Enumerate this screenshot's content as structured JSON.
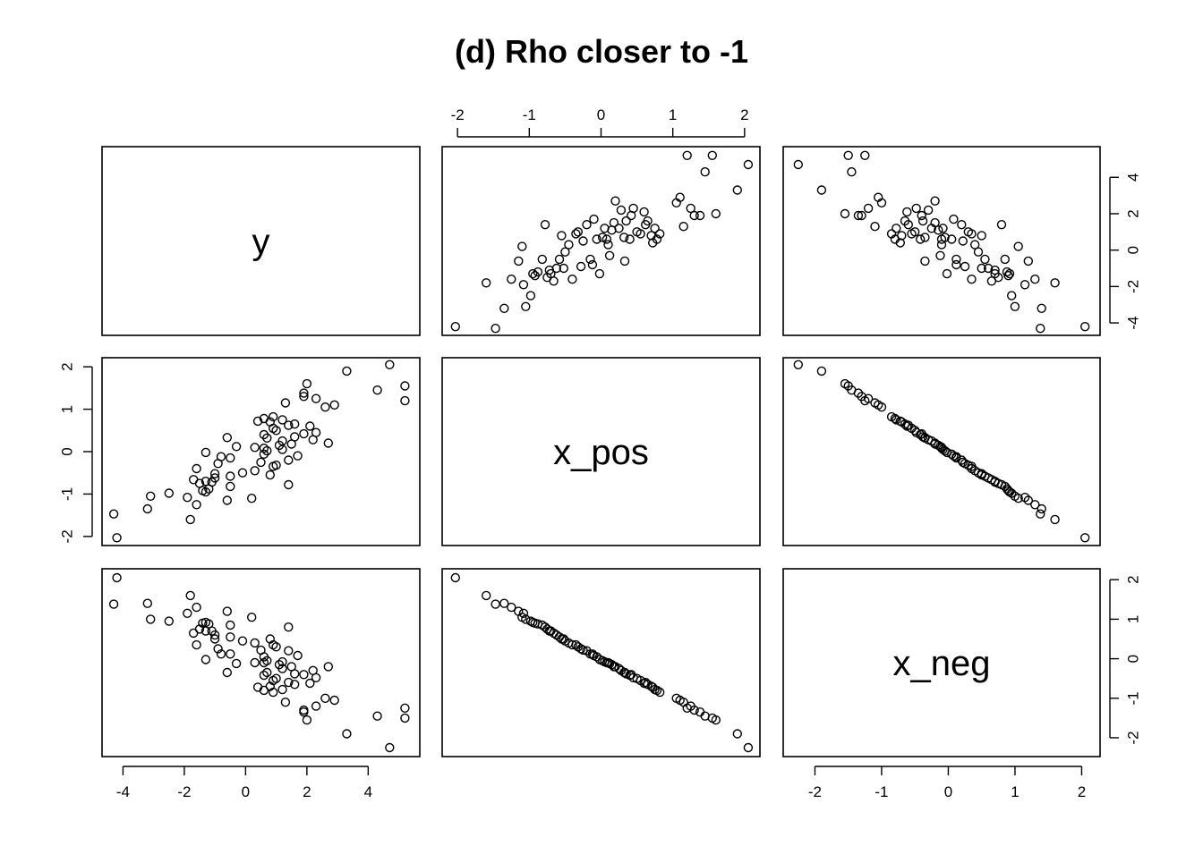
{
  "chart_data": {
    "type": "scatter",
    "title": "(d) Rho closer to -1",
    "variables": [
      "y",
      "x_pos",
      "x_neg"
    ],
    "ranges": {
      "y": [
        -4.3,
        5.3
      ],
      "x_pos": [
        -2.05,
        2.05
      ],
      "x_neg": [
        -2.3,
        2.1
      ]
    },
    "ticks": {
      "y": [
        -4,
        -2,
        0,
        2,
        4
      ],
      "x_pos": [
        -2,
        -1,
        0,
        1,
        2
      ],
      "x_neg": [
        -2,
        -1,
        0,
        1,
        2
      ]
    },
    "tick_labels": {
      "y": [
        "-4",
        "-2",
        "0",
        "2",
        "4"
      ],
      "x_pos": [
        "-2",
        "-1",
        "0",
        "1",
        "2"
      ],
      "x_neg": [
        "-2",
        "-1",
        "0",
        "1",
        "2"
      ]
    },
    "grid": false,
    "legend": "none",
    "point_color": "#000000",
    "points": {
      "x_pos": [
        -2.03,
        -1.6,
        -1.47,
        -1.35,
        -1.25,
        -1.15,
        -1.1,
        -1.08,
        -1.05,
        -0.98,
        -0.95,
        -0.88,
        -0.82,
        -0.78,
        -0.75,
        -0.7,
        -0.66,
        -0.62,
        -0.58,
        -0.55,
        -0.5,
        -0.45,
        -0.4,
        -0.32,
        -0.28,
        -0.25,
        -0.2,
        -0.15,
        -0.1,
        -0.06,
        -0.02,
        0.02,
        0.05,
        0.08,
        0.12,
        0.15,
        0.2,
        0.25,
        0.28,
        0.32,
        0.35,
        0.4,
        0.45,
        0.5,
        0.55,
        0.6,
        0.65,
        0.7,
        0.72,
        0.75,
        0.78,
        0.82,
        1.05,
        1.1,
        1.15,
        1.2,
        1.25,
        1.3,
        1.38,
        1.45,
        1.55,
        1.6,
        1.9,
        2.05,
        -0.92,
        -0.72,
        -0.35,
        -0.12,
        0.1,
        0.42,
        0.62,
        0.33,
        -0.52,
        0.18
      ],
      "y": [
        -4.2,
        -1.8,
        -4.3,
        -3.2,
        -1.6,
        -0.6,
        0.2,
        -1.9,
        -3.1,
        -2.5,
        -1.3,
        -1.2,
        -0.5,
        1.4,
        -1.5,
        -1.3,
        -1.7,
        -1.0,
        -0.5,
        0.8,
        -0.1,
        0.3,
        -1.6,
        1.0,
        -0.9,
        0.5,
        1.4,
        -0.5,
        1.7,
        0.6,
        -1.3,
        0.7,
        1.2,
        0.6,
        -0.3,
        1.1,
        2.7,
        1.2,
        2.2,
        0.7,
        1.6,
        0.6,
        2.3,
        1.0,
        0.9,
        2.1,
        1.6,
        0.8,
        0.4,
        1.2,
        0.6,
        0.9,
        2.6,
        2.9,
        1.3,
        5.2,
        2.3,
        1.9,
        1.9,
        4.3,
        5.2,
        2.0,
        3.3,
        4.7,
        -1.4,
        -1.1,
        0.9,
        -0.8,
        0.3,
        1.9,
        1.4,
        -0.6,
        -1.0,
        1.5
      ],
      "x_neg": [
        2.05,
        1.6,
        1.38,
        1.4,
        1.3,
        1.2,
        1.05,
        1.15,
        1.0,
        0.95,
        0.92,
        0.88,
        0.85,
        0.8,
        0.75,
        0.7,
        0.65,
        0.6,
        0.55,
        0.5,
        0.45,
        0.4,
        0.35,
        0.3,
        0.25,
        0.22,
        0.2,
        0.12,
        0.08,
        0.05,
        -0.02,
        -0.05,
        -0.08,
        -0.1,
        -0.12,
        -0.15,
        -0.2,
        -0.25,
        -0.3,
        -0.35,
        -0.38,
        -0.42,
        -0.48,
        -0.5,
        -0.55,
        -0.62,
        -0.65,
        -0.7,
        -0.72,
        -0.78,
        -0.8,
        -0.85,
        -1.0,
        -1.05,
        -1.1,
        -1.25,
        -1.2,
        -1.3,
        -1.35,
        -1.45,
        -1.5,
        -1.55,
        -1.9,
        -2.25,
        0.9,
        0.7,
        0.35,
        0.12,
        -0.1,
        -0.4,
        -0.6,
        -0.35,
        0.5,
        -0.2
      ]
    }
  }
}
